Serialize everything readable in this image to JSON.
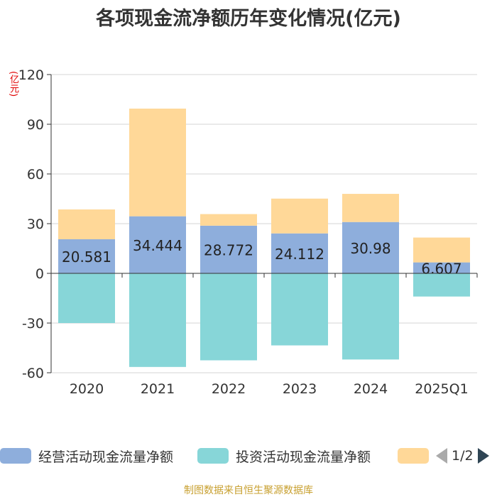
{
  "title": "各项现金流净额历年变化情况(亿元)",
  "unit": "(亿元)",
  "source": "制图数据来自恒生聚源数据库",
  "colors": {
    "operating": "#8eaedc",
    "investing": "#87d6d8",
    "financing": "#ffd898",
    "grid": "#d4d4d4",
    "axis": "#333333"
  },
  "legend": {
    "items": [
      "经营活动现金流量净额",
      "投资活动现金流量净额",
      ""
    ],
    "pager": "1/2"
  },
  "chart_data": {
    "type": "bar",
    "stacked": true,
    "categories": [
      "2020",
      "2021",
      "2022",
      "2023",
      "2024",
      "2025Q1"
    ],
    "ylim": [
      -60,
      120
    ],
    "yticks": [
      120,
      90,
      60,
      30,
      0,
      -30,
      -60
    ],
    "ylabel": "(亿元)",
    "series": [
      {
        "name": "经营活动现金流量净额",
        "values": [
          20.581,
          34.444,
          28.772,
          24.112,
          30.98,
          6.607
        ],
        "labels": [
          "20.581",
          "34.444",
          "28.772",
          "24.112",
          "30.98",
          "6.607"
        ]
      },
      {
        "name": "投资活动现金流量净额",
        "values": [
          -30,
          -56.5,
          -52.5,
          -43.5,
          -52,
          -14
        ]
      },
      {
        "name": "",
        "values": [
          18,
          65,
          7,
          21,
          17,
          15
        ]
      }
    ]
  }
}
